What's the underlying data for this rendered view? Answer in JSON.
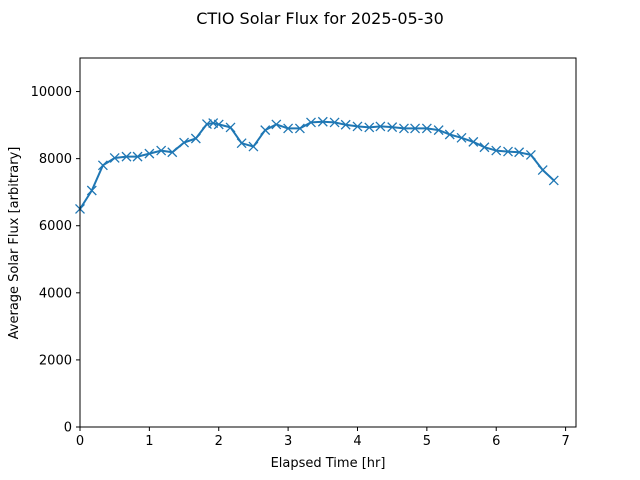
{
  "chart_data": {
    "type": "line",
    "title": "CTIO Solar Flux for 2025-05-30",
    "xlabel": "Elapsed Time [hr]",
    "ylabel": "Average Solar Flux [arbitrary]",
    "xlim": [
      0,
      7.15
    ],
    "ylim": [
      0,
      11000
    ],
    "xticks": [
      0,
      1,
      2,
      3,
      4,
      5,
      6,
      7
    ],
    "yticks": [
      0,
      2000,
      4000,
      6000,
      8000,
      10000
    ],
    "grid": false,
    "marker": "x",
    "color": "#1f77b4",
    "x": [
      0.0,
      0.17,
      0.33,
      0.5,
      0.67,
      0.83,
      1.0,
      1.17,
      1.33,
      1.5,
      1.67,
      1.83,
      1.92,
      2.0,
      2.17,
      2.33,
      2.5,
      2.67,
      2.83,
      3.0,
      3.17,
      3.33,
      3.5,
      3.67,
      3.83,
      4.0,
      4.17,
      4.33,
      4.5,
      4.67,
      4.83,
      5.0,
      5.17,
      5.33,
      5.5,
      5.67,
      5.83,
      6.0,
      6.17,
      6.33,
      6.5,
      6.67,
      6.83
    ],
    "y": [
      6500,
      7050,
      7800,
      8020,
      8060,
      8060,
      8150,
      8240,
      8190,
      8480,
      8600,
      9030,
      9060,
      9020,
      8930,
      8460,
      8360,
      8850,
      9020,
      8900,
      8900,
      9080,
      9100,
      9080,
      9010,
      8960,
      8930,
      8960,
      8940,
      8900,
      8900,
      8900,
      8850,
      8720,
      8620,
      8500,
      8340,
      8240,
      8210,
      8190,
      8110,
      7660,
      7350
    ]
  }
}
